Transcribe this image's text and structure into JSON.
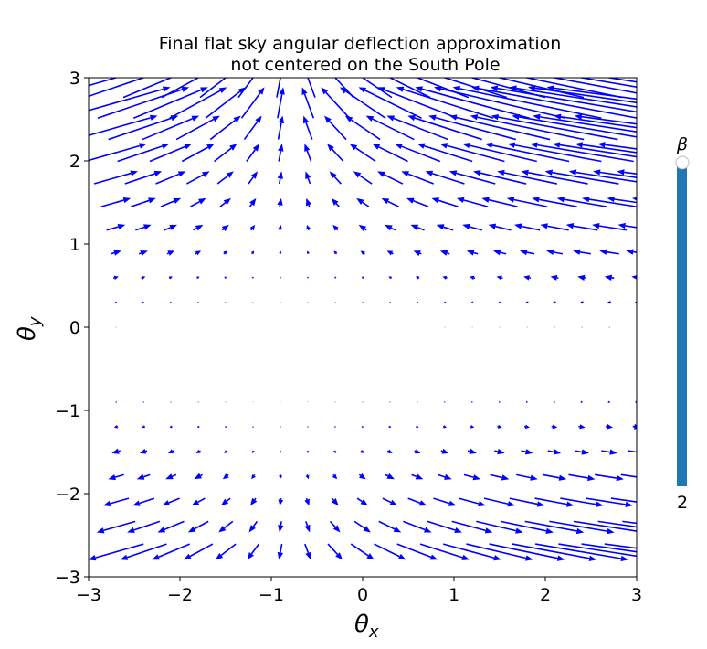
{
  "chart_data": {
    "type": "quiver",
    "title": [
      "Final flat sky angular deflection approximation",
      "not centered on the South Pole"
    ],
    "xlabel": {
      "symbol": "θ",
      "subscript": "x"
    },
    "ylabel": {
      "symbol": "θ",
      "subscript": "y"
    },
    "xlim": [
      -3,
      3
    ],
    "ylim": [
      -3,
      3
    ],
    "xticks": [
      -3,
      -2,
      -1,
      0,
      1,
      2,
      3
    ],
    "yticks": [
      -3,
      -2,
      -1,
      0,
      1,
      2,
      3
    ],
    "xtick_labels": [
      "−3",
      "−2",
      "−1",
      "0",
      "1",
      "2",
      "3"
    ],
    "ytick_labels": [
      "−3",
      "−2",
      "−1",
      "0",
      "1",
      "2",
      "3"
    ],
    "grid": false,
    "arrow_color": "#0000ff",
    "field": {
      "grid_x_start": -2.7,
      "grid_x_step": 0.3,
      "nx": 21,
      "grid_y_start": -2.7,
      "grid_y_step": 0.3,
      "ny": 20,
      "center": [
        -0.8,
        -0.35
      ],
      "x_gain": 1.2,
      "y_scale": 0.65,
      "vertical_power": 2.6
    }
  },
  "slider": {
    "label": "β",
    "value_text": "2",
    "level": 1.0,
    "color": "#1f77b4",
    "handle_color": "#ffffff"
  }
}
